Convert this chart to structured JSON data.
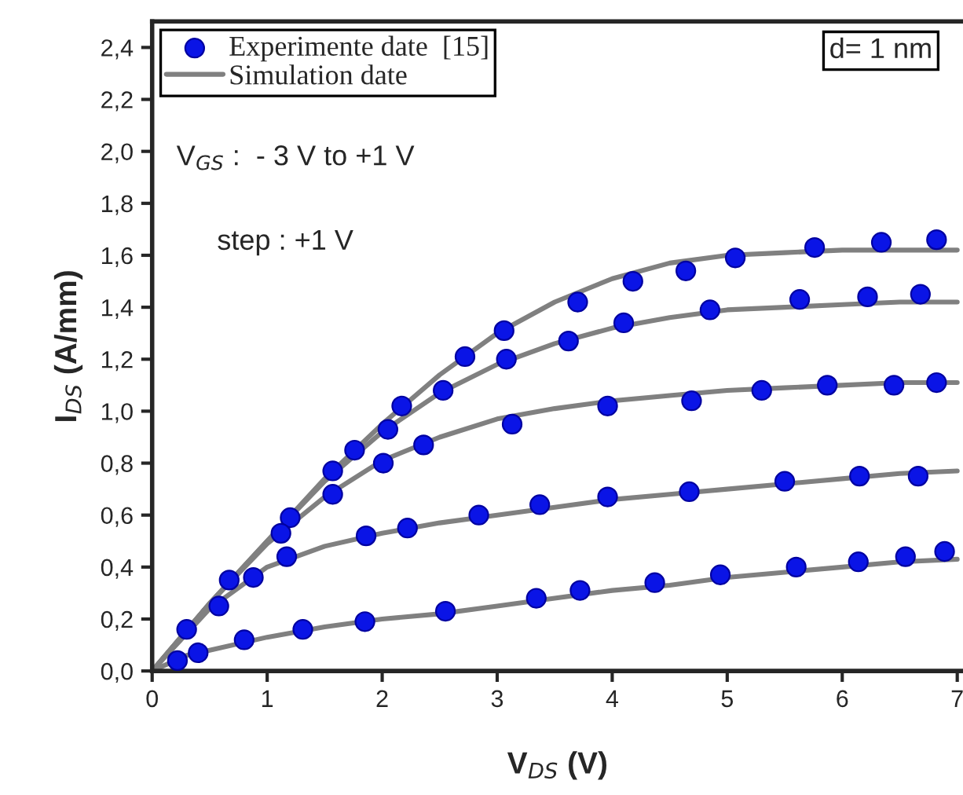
{
  "chart_data": {
    "type": "scatter",
    "xlabel": "V$_{DS}$ (V)",
    "ylabel": "I$_{DS}$ (A/mm)",
    "xlim": [
      0,
      7.05
    ],
    "ylim": [
      0,
      2.5
    ],
    "xticks": [
      0,
      1,
      2,
      3,
      4,
      5,
      6,
      7
    ],
    "yticks": [
      {
        "value": 0,
        "label": "0,0"
      },
      {
        "value": 0.2,
        "label": "0,2"
      },
      {
        "value": 0.4,
        "label": "0,4"
      },
      {
        "value": 0.6,
        "label": "0,6"
      },
      {
        "value": 0.8,
        "label": "0,8"
      },
      {
        "value": 1.0,
        "label": "1,0"
      },
      {
        "value": 1.2,
        "label": "1,2"
      },
      {
        "value": 1.4,
        "label": "1,4"
      },
      {
        "value": 1.6,
        "label": "1,6"
      },
      {
        "value": 1.8,
        "label": "1,8"
      },
      {
        "value": 2.0,
        "label": "2,0"
      },
      {
        "value": 2.2,
        "label": "2,2"
      },
      {
        "value": 2.4,
        "label": "2,4"
      }
    ],
    "grid": false,
    "legend": "top left",
    "line_style": "solid",
    "annotations": [
      "V$_{GS}$ :  - 3 V to +1 V",
      "step : +1 V",
      "d= 1 nm"
    ],
    "series": [
      {
        "name": "Experimente date  [15]",
        "marker": "circle",
        "color": "#0a14e6",
        "x": [
          0.3,
          0.67,
          1.2,
          1.57,
          1.76,
          2.17,
          2.72,
          3.06,
          3.7,
          4.18,
          4.64,
          5.07,
          5.76,
          6.34,
          6.82
        ],
        "values": [
          0.16,
          0.35,
          0.59,
          0.77,
          0.85,
          1.02,
          1.21,
          1.31,
          1.42,
          1.5,
          1.54,
          1.59,
          1.63,
          1.65,
          1.66
        ]
      },
      {
        "type": "line",
        "name": "Simulation date",
        "color": "#808080",
        "x": [
          0,
          0.5,
          1,
          1.5,
          2,
          2.5,
          3,
          3.5,
          4,
          4.5,
          5,
          5.5,
          6,
          6.5,
          7
        ],
        "values": [
          0,
          0.26,
          0.5,
          0.74,
          0.95,
          1.14,
          1.3,
          1.42,
          1.51,
          1.57,
          1.6,
          1.61,
          1.62,
          1.62,
          1.62
        ]
      },
      {
        "type": "line",
        "color": "#808080",
        "x": [
          0,
          0.5,
          1,
          1.5,
          2,
          2.5,
          3,
          3.5,
          4,
          4.5,
          5,
          5.5,
          6,
          6.5,
          7
        ],
        "values": [
          0,
          0.26,
          0.5,
          0.73,
          0.92,
          1.07,
          1.18,
          1.26,
          1.32,
          1.36,
          1.39,
          1.4,
          1.41,
          1.42,
          1.42
        ]
      },
      {
        "type": "line",
        "color": "#808080",
        "x": [
          0,
          0.5,
          1,
          1.5,
          2,
          2.5,
          3,
          3.5,
          4,
          4.5,
          5,
          5.5,
          6,
          6.5,
          7
        ],
        "values": [
          0,
          0.26,
          0.49,
          0.67,
          0.81,
          0.9,
          0.97,
          1.01,
          1.04,
          1.06,
          1.08,
          1.09,
          1.1,
          1.11,
          1.11
        ]
      },
      {
        "type": "line",
        "color": "#808080",
        "x": [
          0,
          0.5,
          1,
          1.5,
          2,
          2.5,
          3,
          3.5,
          4,
          4.5,
          5,
          5.5,
          6,
          6.5,
          7
        ],
        "values": [
          0,
          0.24,
          0.4,
          0.48,
          0.53,
          0.57,
          0.6,
          0.63,
          0.66,
          0.68,
          0.7,
          0.72,
          0.74,
          0.76,
          0.77
        ]
      },
      {
        "type": "line",
        "color": "#808080",
        "x": [
          0,
          0.3,
          0.5,
          1,
          1.5,
          2,
          2.5,
          3,
          3.5,
          4,
          4.5,
          5,
          5.5,
          6,
          6.5,
          7
        ],
        "values": [
          0,
          0.06,
          0.08,
          0.13,
          0.17,
          0.2,
          0.22,
          0.25,
          0.28,
          0.31,
          0.33,
          0.36,
          0.38,
          0.4,
          0.42,
          0.43
        ]
      },
      {
        "marker": "circle",
        "color": "#0a14e6",
        "x": [
          0.58,
          1.12,
          2.05,
          2.53,
          3.08,
          3.62,
          4.1,
          4.85,
          5.63,
          6.22,
          6.68
        ],
        "values": [
          0.25,
          0.53,
          0.93,
          1.08,
          1.2,
          1.27,
          1.34,
          1.39,
          1.43,
          1.44,
          1.45
        ]
      },
      {
        "marker": "circle",
        "color": "#0a14e6",
        "x": [
          0.88,
          1.57,
          2.01,
          2.36,
          3.13,
          3.96,
          4.69,
          5.3,
          5.87,
          6.45,
          6.82
        ],
        "values": [
          0.36,
          0.68,
          0.8,
          0.87,
          0.95,
          1.02,
          1.04,
          1.08,
          1.1,
          1.1,
          1.11
        ]
      },
      {
        "marker": "circle",
        "color": "#0a14e6",
        "x": [
          1.17,
          1.86,
          2.22,
          2.84,
          3.37,
          3.96,
          4.67,
          5.5,
          6.15,
          6.66
        ],
        "values": [
          0.44,
          0.52,
          0.55,
          0.6,
          0.64,
          0.67,
          0.69,
          0.73,
          0.75,
          0.75
        ]
      },
      {
        "marker": "circle",
        "color": "#0a14e6",
        "x": [
          0.22,
          0.4,
          0.8,
          1.31,
          1.85,
          2.55,
          3.34,
          3.72,
          4.37,
          4.94,
          5.6,
          6.14,
          6.55,
          6.89
        ],
        "values": [
          0.04,
          0.07,
          0.12,
          0.16,
          0.19,
          0.23,
          0.28,
          0.31,
          0.34,
          0.37,
          0.4,
          0.42,
          0.44,
          0.46
        ]
      }
    ]
  }
}
